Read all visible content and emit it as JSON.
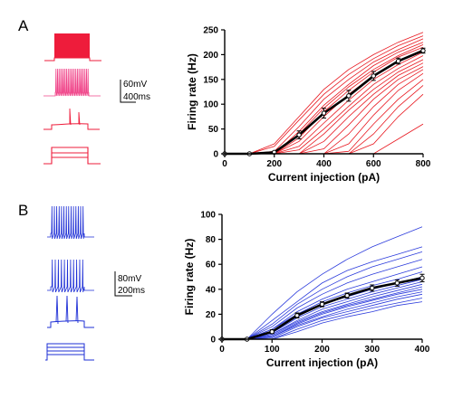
{
  "figure": {
    "panels": [
      {
        "letter": "A",
        "scale_voltage": "60mV",
        "scale_time": "400ms",
        "trace_color": "#ee1c3b",
        "raster_color": "#f0468a"
      },
      {
        "letter": "B",
        "scale_voltage": "80mV",
        "scale_time": "200ms",
        "trace_color": "#1e2fd6",
        "raster_color": "#1e2fd6"
      }
    ]
  },
  "chart_data": [
    {
      "type": "line",
      "panel": "A",
      "xlabel": "Current injection (pA)",
      "ylabel": "Firing rate (Hz)",
      "xlim": [
        0,
        800
      ],
      "ylim": [
        0,
        250
      ],
      "xticks": [
        0,
        200,
        400,
        600,
        800
      ],
      "yticks": [
        0,
        50,
        100,
        150,
        200,
        250
      ],
      "individual_color": "#e8171f",
      "mean_color": "#000000",
      "mean": {
        "x": [
          0,
          100,
          200,
          300,
          400,
          500,
          600,
          700,
          800
        ],
        "y": [
          0,
          0,
          3,
          38,
          82,
          117,
          157,
          187,
          208
        ],
        "err": [
          0,
          0,
          2,
          8,
          10,
          11,
          9,
          6,
          5
        ]
      },
      "individual_x": [
        0,
        100,
        200,
        300,
        400,
        500,
        600,
        700,
        800
      ],
      "individual_y": [
        [
          0,
          0,
          20,
          75,
          130,
          170,
          200,
          225,
          245
        ],
        [
          0,
          0,
          15,
          68,
          120,
          160,
          192,
          218,
          238
        ],
        [
          0,
          0,
          5,
          55,
          110,
          150,
          185,
          210,
          232
        ],
        [
          0,
          0,
          0,
          45,
          98,
          140,
          178,
          205,
          225
        ],
        [
          0,
          0,
          0,
          40,
          92,
          135,
          170,
          198,
          220
        ],
        [
          0,
          0,
          0,
          32,
          85,
          128,
          165,
          195,
          215
        ],
        [
          0,
          0,
          0,
          25,
          75,
          120,
          158,
          188,
          210
        ],
        [
          0,
          0,
          0,
          15,
          62,
          108,
          150,
          180,
          205
        ],
        [
          0,
          0,
          0,
          8,
          50,
          96,
          140,
          172,
          198
        ],
        [
          0,
          0,
          0,
          0,
          40,
          88,
          130,
          165,
          190
        ],
        [
          0,
          0,
          0,
          0,
          25,
          75,
          120,
          158,
          183
        ],
        [
          0,
          0,
          0,
          0,
          10,
          58,
          110,
          150,
          176
        ],
        [
          0,
          0,
          0,
          0,
          0,
          40,
          95,
          140,
          170
        ],
        [
          0,
          0,
          0,
          0,
          0,
          20,
          78,
          128,
          162
        ],
        [
          0,
          0,
          0,
          0,
          0,
          5,
          60,
          110,
          150
        ],
        [
          0,
          0,
          0,
          0,
          0,
          0,
          40,
          95,
          138
        ],
        [
          0,
          0,
          0,
          0,
          0,
          0,
          20,
          75,
          120
        ],
        [
          0,
          0,
          0,
          0,
          0,
          0,
          0,
          30,
          60
        ]
      ]
    },
    {
      "type": "line",
      "panel": "B",
      "xlabel": "Current injection (pA)",
      "ylabel": "Firing rate (Hz)",
      "xlim": [
        0,
        400
      ],
      "ylim": [
        0,
        100
      ],
      "xticks": [
        0,
        100,
        200,
        300,
        400
      ],
      "yticks": [
        0,
        20,
        40,
        60,
        80,
        100
      ],
      "individual_color": "#2b3bdc",
      "mean_color": "#000000",
      "mean": {
        "x": [
          0,
          50,
          100,
          150,
          200,
          250,
          300,
          350,
          400
        ],
        "y": [
          0,
          0,
          6,
          19,
          28,
          35,
          41,
          45,
          49
        ],
        "err": [
          0,
          0,
          1.5,
          2,
          2,
          2,
          2.5,
          2.5,
          3
        ]
      },
      "individual_x": [
        0,
        50,
        100,
        150,
        200,
        250,
        300,
        350,
        400
      ],
      "individual_y": [
        [
          0,
          0,
          20,
          38,
          52,
          64,
          74,
          82,
          90
        ],
        [
          0,
          0,
          15,
          30,
          45,
          55,
          62,
          68,
          74
        ],
        [
          0,
          0,
          12,
          28,
          40,
          50,
          58,
          64,
          70
        ],
        [
          0,
          0,
          10,
          25,
          36,
          45,
          52,
          58,
          64
        ],
        [
          0,
          0,
          8,
          22,
          32,
          40,
          46,
          52,
          58
        ],
        [
          0,
          0,
          8,
          20,
          30,
          37,
          43,
          48,
          54
        ],
        [
          0,
          0,
          6,
          18,
          28,
          34,
          40,
          45,
          50
        ],
        [
          0,
          0,
          5,
          17,
          26,
          32,
          38,
          43,
          48
        ],
        [
          0,
          0,
          4,
          15,
          24,
          30,
          36,
          41,
          46
        ],
        [
          0,
          0,
          4,
          14,
          22,
          28,
          34,
          39,
          44
        ],
        [
          0,
          0,
          3,
          13,
          21,
          27,
          32,
          37,
          42
        ],
        [
          0,
          0,
          2,
          12,
          20,
          26,
          31,
          36,
          40
        ],
        [
          0,
          0,
          2,
          11,
          18,
          24,
          29,
          34,
          38
        ],
        [
          0,
          0,
          1,
          10,
          17,
          22,
          27,
          32,
          36
        ],
        [
          0,
          0,
          0,
          8,
          15,
          20,
          25,
          29,
          33
        ],
        [
          0,
          0,
          0,
          6,
          13,
          18,
          22,
          27,
          30
        ]
      ]
    }
  ]
}
